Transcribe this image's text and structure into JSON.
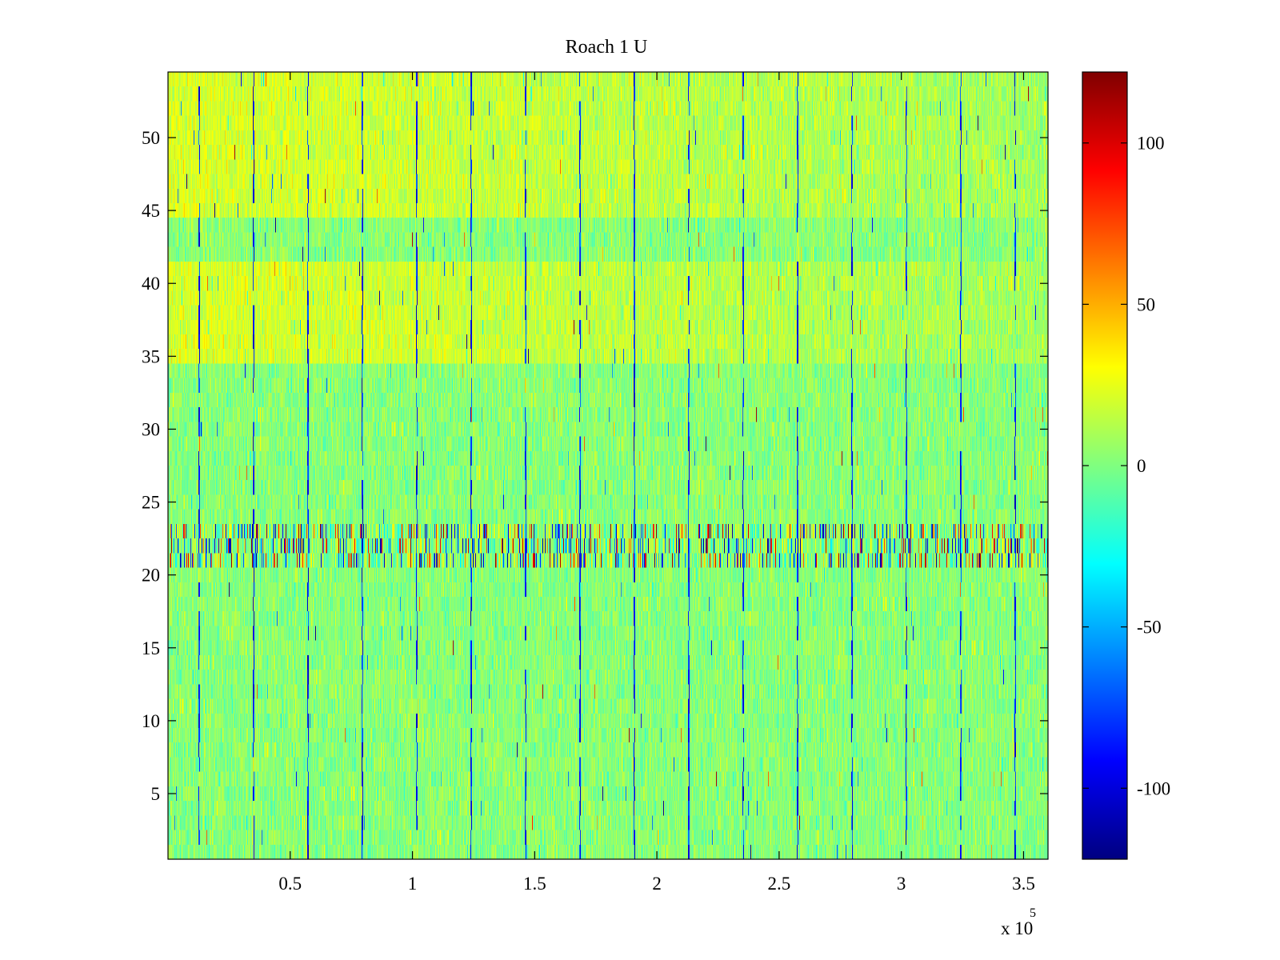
{
  "chart_data": {
    "type": "heatmap",
    "title": "Roach 1 U",
    "xlabel": "",
    "ylabel": "",
    "x_exponent_label": "x 10",
    "x_exponent_power": "5",
    "xlim": [
      0,
      3.6
    ],
    "ylim": [
      0.5,
      54.5
    ],
    "x_ticks": [
      0.5,
      1,
      1.5,
      2,
      2.5,
      3,
      3.5
    ],
    "x_tick_labels": [
      "0.5",
      "1",
      "1.5",
      "2",
      "2.5",
      "3",
      "3.5"
    ],
    "y_ticks": [
      5,
      10,
      15,
      20,
      25,
      30,
      35,
      40,
      45,
      50
    ],
    "y_tick_labels": [
      "5",
      "10",
      "15",
      "20",
      "25",
      "30",
      "35",
      "40",
      "45",
      "50"
    ],
    "rows": 54,
    "colormap": "jet",
    "clim": [
      -122,
      122
    ],
    "colorbar": {
      "ticks": [
        -100,
        -50,
        0,
        50,
        100
      ],
      "tick_labels": [
        "-100",
        "-50",
        "0",
        "50",
        "100"
      ]
    },
    "grid": false,
    "row_profile": {
      "noisy_spike_rows": [
        21,
        22,
        23
      ],
      "warm_rows": [
        35,
        36,
        37,
        38,
        39,
        40,
        41,
        45,
        46,
        47,
        48,
        49,
        50,
        51,
        52,
        53,
        54
      ],
      "description_bias": "top rows warmer (positive), rows 21-23 show high-variance dark-blue/red spikes"
    },
    "dominant_value_range": [
      -20,
      20
    ],
    "spike_value_range": [
      -120,
      110
    ]
  }
}
